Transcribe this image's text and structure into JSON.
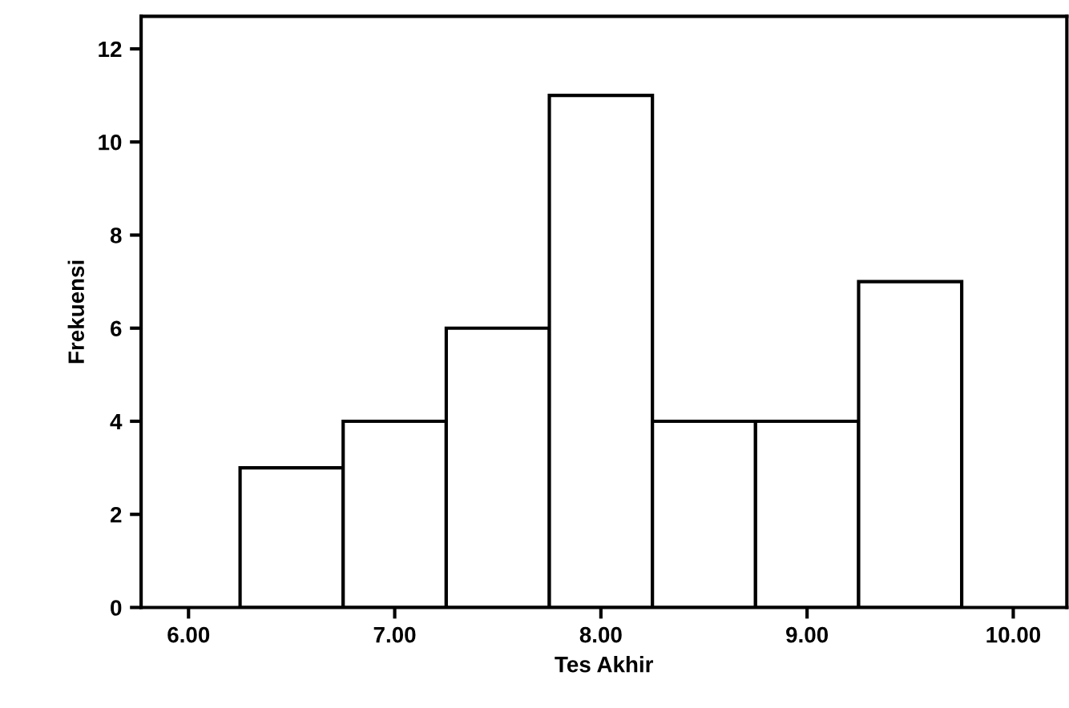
{
  "chart_data": {
    "type": "histogram",
    "xlabel": "Tes Akhir",
    "ylabel": "Frekuensi",
    "bins": [
      6.25,
      6.75,
      7.25,
      7.75,
      8.25,
      8.75,
      9.25,
      9.75
    ],
    "values": [
      3,
      4,
      6,
      11,
      4,
      4,
      7
    ],
    "color": "#ffffff",
    "xlim": [
      5.77,
      10.26
    ],
    "ylim": [
      0,
      12.7
    ],
    "xticks": [
      {
        "value": 6,
        "label": "6.00"
      },
      {
        "value": 7,
        "label": "7.00"
      },
      {
        "value": 8,
        "label": "8.00"
      },
      {
        "value": 9,
        "label": "9.00"
      },
      {
        "value": 10,
        "label": "10.00"
      }
    ],
    "yticks": [
      0,
      2,
      4,
      6,
      8,
      10,
      12
    ],
    "grid": false,
    "legend": false
  }
}
